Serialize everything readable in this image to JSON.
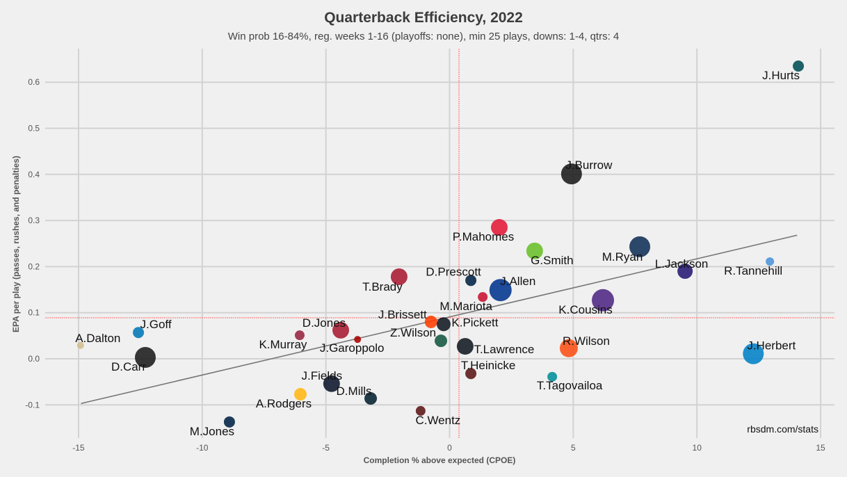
{
  "chart_data": {
    "type": "scatter",
    "title": "Quarterback Efficiency, 2022",
    "subtitle": "Win prob 16-84%, reg. weeks 1-16 (playoffs: none), min 25 plays, downs: 1-4, qtrs: 4",
    "xlabel": "Completion % above expected (CPOE)",
    "ylabel": "EPA per play (passes, rushes, and penalties)",
    "xlim": [
      -16.5,
      15.5
    ],
    "ylim": [
      -0.17,
      0.67
    ],
    "xticks": [
      -15,
      -10,
      -5,
      0,
      5,
      10,
      15
    ],
    "yticks": [
      -0.1,
      0.0,
      0.1,
      0.2,
      0.3,
      0.4,
      0.5,
      0.6
    ],
    "ytick_labels": [
      "-0.1",
      "0.0",
      "0.1",
      "0.2",
      "0.3",
      "0.4",
      "0.5",
      "0.6"
    ],
    "grid": true,
    "mean_lines": {
      "x": 0.38,
      "y": 0.089,
      "color": "#ff6666"
    },
    "trend_line": {
      "x": [
        -14.9,
        14.05
      ],
      "y": [
        -0.097,
        0.268
      ],
      "color": "#777777"
    },
    "credit": "rbsdm.com/stats",
    "points": [
      {
        "name": "J.Hurts",
        "x": 14.1,
        "y": 0.635,
        "size": 8,
        "color": "#004c54"
      },
      {
        "name": "J.Burrow",
        "x": 4.93,
        "y": 0.401,
        "size": 15,
        "color": "#1a1a1a"
      },
      {
        "name": "P.Mahomes",
        "x": 2.01,
        "y": 0.285,
        "size": 12,
        "color": "#e31837"
      },
      {
        "name": "G.Smith",
        "x": 3.44,
        "y": 0.234,
        "size": 12,
        "color": "#69be28"
      },
      {
        "name": "M.Ryan",
        "x": 7.69,
        "y": 0.243,
        "size": 15,
        "color": "#0f2f57"
      },
      {
        "name": "L.Jackson",
        "x": 9.52,
        "y": 0.19,
        "size": 11,
        "color": "#241773"
      },
      {
        "name": "R.Tannehill",
        "x": 12.95,
        "y": 0.211,
        "size": 6,
        "color": "#4b92db"
      },
      {
        "name": "T.Brady",
        "x": -2.04,
        "y": 0.178,
        "size": 12,
        "color": "#a71930"
      },
      {
        "name": "D.Prescott",
        "x": 0.86,
        "y": 0.17,
        "size": 8,
        "color": "#002244"
      },
      {
        "name": "J.Allen",
        "x": 2.06,
        "y": 0.149,
        "size": 16,
        "color": "#00338d"
      },
      {
        "name": "M.Mariota",
        "x": 1.34,
        "y": 0.134,
        "size": 7,
        "color": "#c8102e"
      },
      {
        "name": "K.Cousins",
        "x": 6.2,
        "y": 0.127,
        "size": 16,
        "color": "#4f2683"
      },
      {
        "name": "J.Brissett",
        "x": -0.75,
        "y": 0.08,
        "size": 9,
        "color": "#ff3c00"
      },
      {
        "name": "K.Pickett",
        "x": -0.24,
        "y": 0.075,
        "size": 10,
        "color": "#101820"
      },
      {
        "name": "Z.Wilson",
        "x": -0.35,
        "y": 0.039,
        "size": 9,
        "color": "#125740"
      },
      {
        "name": "T.Lawrence",
        "x": 0.63,
        "y": 0.027,
        "size": 12,
        "color": "#101820"
      },
      {
        "name": "R.Wilson",
        "x": 4.82,
        "y": 0.023,
        "size": 13,
        "color": "#fb4f14"
      },
      {
        "name": "J.Herbert",
        "x": 12.28,
        "y": 0.011,
        "size": 15,
        "color": "#0080c6"
      },
      {
        "name": "T.Tagovailoa",
        "x": 4.15,
        "y": -0.039,
        "size": 7,
        "color": "#008e97"
      },
      {
        "name": "T.Heinicke",
        "x": 0.86,
        "y": -0.032,
        "size": 8,
        "color": "#5a1414"
      },
      {
        "name": "C.Wentz",
        "x": -1.17,
        "y": -0.113,
        "size": 7,
        "color": "#5a1414"
      },
      {
        "name": "D.Mills",
        "x": -3.19,
        "y": -0.086,
        "size": 9,
        "color": "#03202f"
      },
      {
        "name": "J.Fields",
        "x": -4.77,
        "y": -0.054,
        "size": 12,
        "color": "#0b162a"
      },
      {
        "name": "A.Rodgers",
        "x": -6.03,
        "y": -0.077,
        "size": 9,
        "color": "#ffb612"
      },
      {
        "name": "M.Jones",
        "x": -8.9,
        "y": -0.137,
        "size": 8,
        "color": "#002244"
      },
      {
        "name": "D.Jones",
        "x": -4.4,
        "y": 0.062,
        "size": 12,
        "color": "#a71930"
      },
      {
        "name": "J.Garoppolo",
        "x": -3.72,
        "y": 0.042,
        "size": 5,
        "color": "#aa0000"
      },
      {
        "name": "K.Murray",
        "x": -6.06,
        "y": 0.051,
        "size": 7,
        "color": "#97233f"
      },
      {
        "name": "J.Goff",
        "x": -12.58,
        "y": 0.057,
        "size": 8,
        "color": "#0076b6"
      },
      {
        "name": "A.Dalton",
        "x": -14.92,
        "y": 0.029,
        "size": 5,
        "color": "#d3bc8d"
      },
      {
        "name": "D.Carr",
        "x": -12.3,
        "y": 0.003,
        "size": 15,
        "color": "#1a1a1a"
      }
    ]
  }
}
